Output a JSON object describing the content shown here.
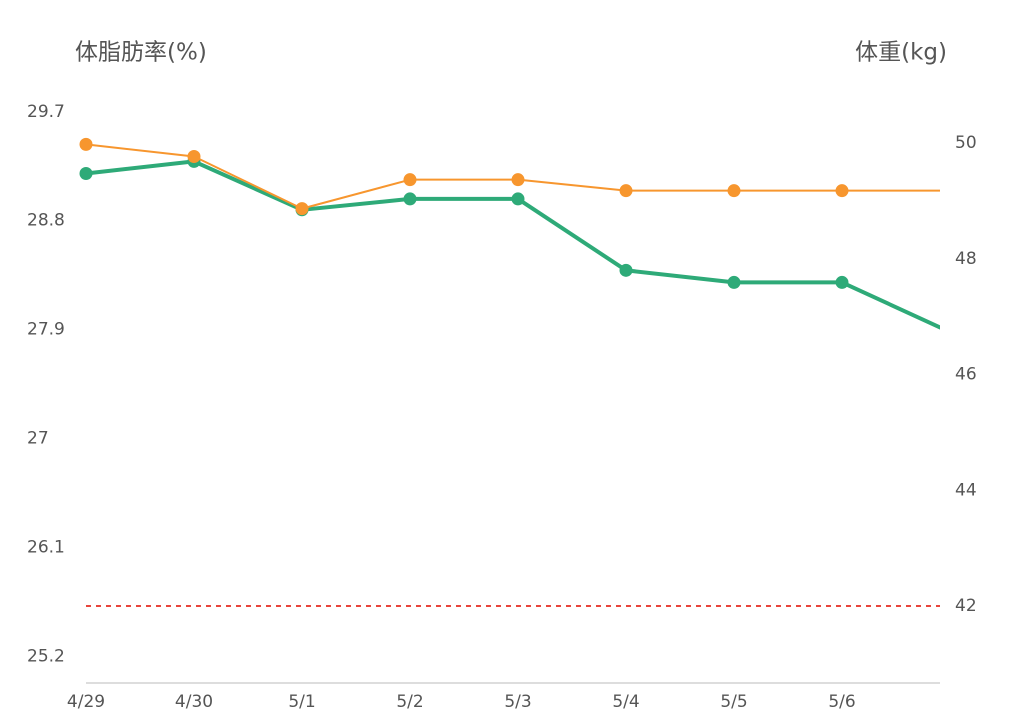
{
  "chart_data": {
    "type": "line",
    "y_label": "体脂肪率(%)",
    "y2_label": "体重(kg)",
    "categories": [
      "4/29",
      "4/30",
      "5/1",
      "5/2",
      "5/3",
      "5/4",
      "5/5",
      "5/6",
      null
    ],
    "series": [
      {
        "color": "#2eaa78",
        "axis": "y",
        "values": [
          29.19,
          29.29,
          28.89,
          28.98,
          28.98,
          28.39,
          28.29,
          28.29,
          27.88
        ]
      },
      {
        "color": "#f7962e",
        "axis": "y2",
        "values": [
          49.98,
          49.77,
          48.87,
          49.37,
          49.37,
          49.18,
          49.18,
          49.18,
          49.18
        ]
      }
    ],
    "ylim": [
      24.98,
      29.88
    ],
    "yticks": [
      25.2,
      26.1,
      27,
      27.9,
      28.8,
      29.7
    ],
    "y2lim": [
      40.67,
      50.92
    ],
    "y2ticks": [
      42,
      44,
      46,
      48,
      50
    ],
    "reference_lines": [
      {
        "value": 42,
        "axis": "y2",
        "color": "#e8453c"
      }
    ]
  }
}
